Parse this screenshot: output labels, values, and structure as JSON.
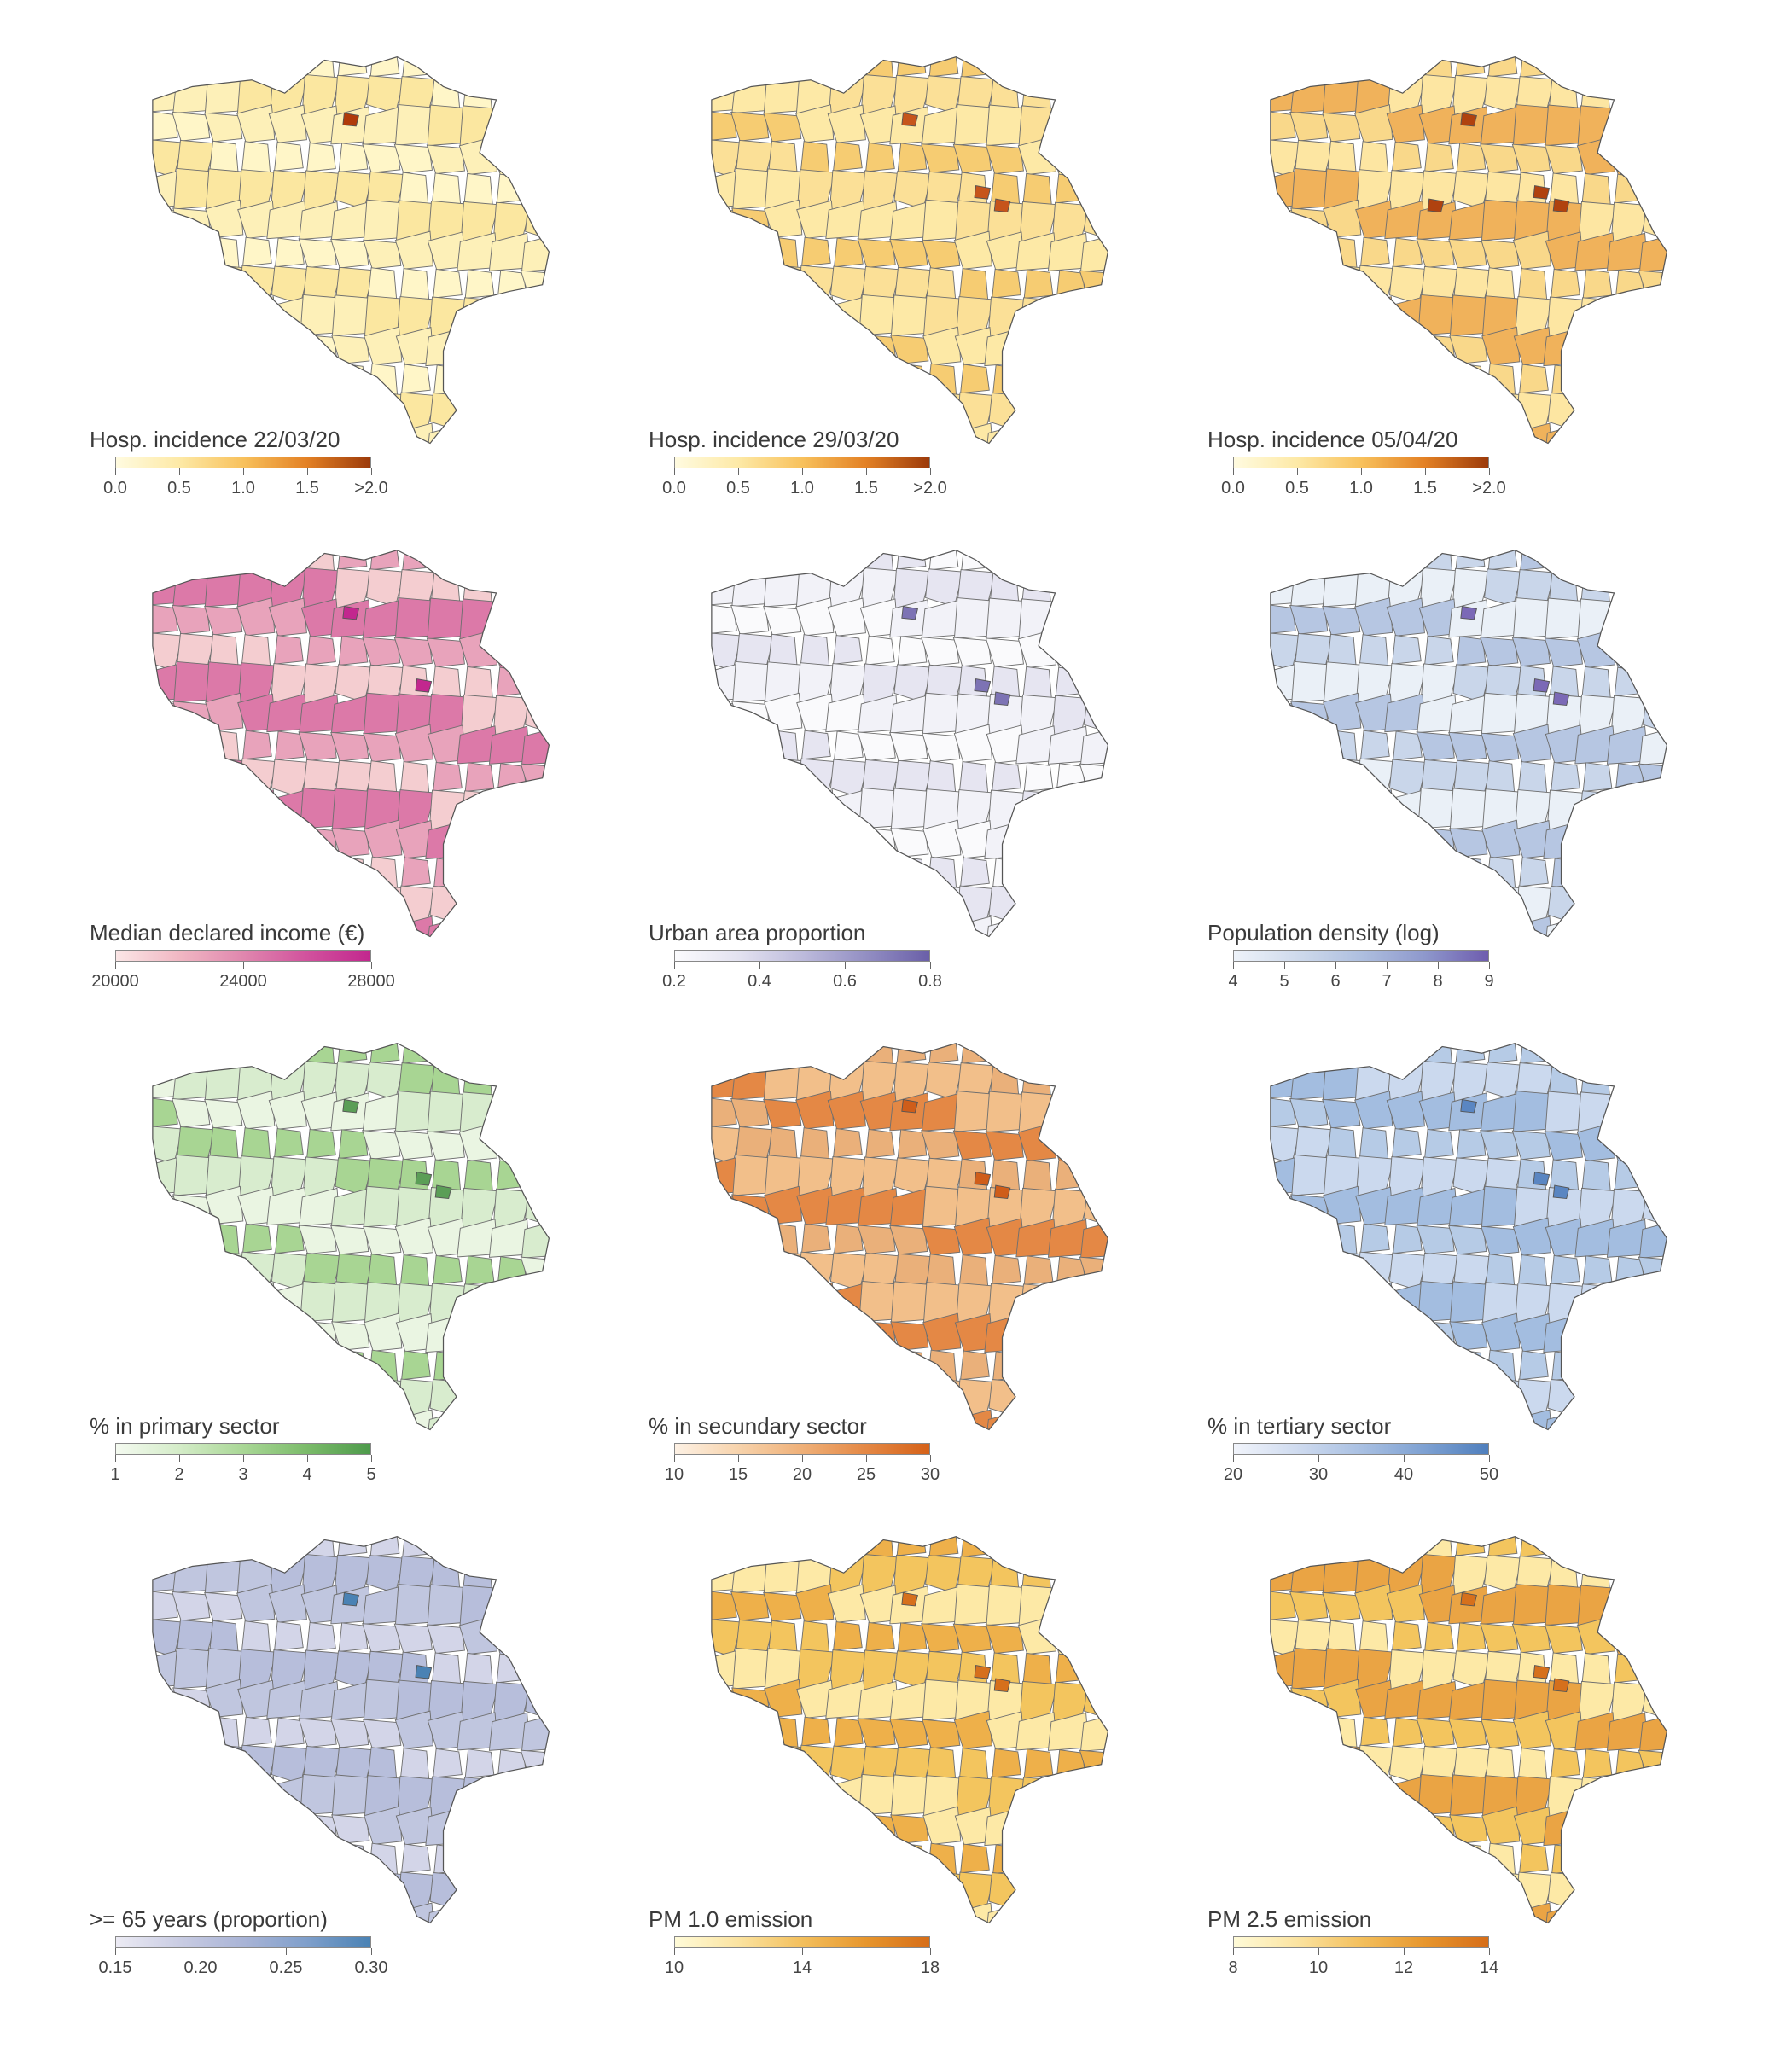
{
  "panels": [
    {
      "title": "Hosp. incidence 22/03/20",
      "ticks": [
        "0.0",
        "0.5",
        "1.0",
        "1.5",
        ">2.0"
      ],
      "colors": [
        "#fffbe0",
        "#fde9a6",
        "#f8c15c",
        "#e38125",
        "#9c3a0a"
      ],
      "fill": [
        "#fff6c8",
        "#fdf0b8",
        "#fbe7a0"
      ],
      "hot": "#b03a0a",
      "hotCount": 1
    },
    {
      "title": "Hosp. incidence 29/03/20",
      "ticks": [
        "0.0",
        "0.5",
        "1.0",
        "1.5",
        ">2.0"
      ],
      "colors": [
        "#fffbe0",
        "#fde9a6",
        "#f8c15c",
        "#e38125",
        "#9c3a0a"
      ],
      "fill": [
        "#fde9a6",
        "#fbe097",
        "#f6cc72"
      ],
      "hot": "#c6551b",
      "hotCount": 3
    },
    {
      "title": "Hosp. incidence 05/04/20",
      "ticks": [
        "0.0",
        "0.5",
        "1.0",
        "1.5",
        ">2.0"
      ],
      "colors": [
        "#fffbe0",
        "#fde9a6",
        "#f8c15c",
        "#e38125",
        "#9c3a0a"
      ],
      "fill": [
        "#fde6a2",
        "#f9d88a",
        "#f0b25b"
      ],
      "hot": "#b0420f",
      "hotCount": 4
    },
    {
      "title": "Median declared income (€)",
      "ticks": [
        "20000",
        "24000",
        "28000"
      ],
      "colors": [
        "#fbe6e6",
        "#f0b7c3",
        "#e087ae",
        "#d1529d",
        "#c2278e"
      ],
      "fill": [
        "#e8a3bb",
        "#dc79a8",
        "#f4cdd0"
      ],
      "hot": "#c2278e",
      "hotCount": 2
    },
    {
      "title": "Urban area proportion",
      "ticks": [
        "0.2",
        "0.4",
        "0.6",
        "0.8"
      ],
      "colors": [
        "#fbfbfd",
        "#e3e2f0",
        "#bdbbdc",
        "#938fc3",
        "#6a5fa8"
      ],
      "fill": [
        "#f2f2f8",
        "#e6e5f1",
        "#fafafc"
      ],
      "hot": "#7d73b4",
      "hotCount": 3
    },
    {
      "title": "Population density (log)",
      "ticks": [
        "4",
        "5",
        "6",
        "7",
        "8",
        "9"
      ],
      "colors": [
        "#eef3fa",
        "#cfdaec",
        "#aebfdf",
        "#8e98cc",
        "#6e5cae"
      ],
      "fill": [
        "#c9d6ea",
        "#b6c6e2",
        "#eaf0f7"
      ],
      "hot": "#7b69b6",
      "hotCount": 3
    },
    {
      "title": "% in primary sector",
      "ticks": [
        "1",
        "2",
        "3",
        "4",
        "5"
      ],
      "colors": [
        "#f4faf0",
        "#d4ecc8",
        "#a9d796",
        "#7bbb6a",
        "#4d9a4b"
      ],
      "fill": [
        "#eaf5e2",
        "#d8ecce",
        "#a8d593"
      ],
      "hot": "#5b9e57",
      "hotCount": 3
    },
    {
      "title": "% in secundary sector",
      "ticks": [
        "10",
        "15",
        "20",
        "25",
        "30"
      ],
      "colors": [
        "#fdf1e4",
        "#f7d3ac",
        "#efb078",
        "#e48845",
        "#d56118"
      ],
      "fill": [
        "#f2bf8a",
        "#eab07a",
        "#e48845"
      ],
      "hot": "#cf5d1a",
      "hotCount": 3
    },
    {
      "title": "% in tertiary sector",
      "ticks": [
        "20",
        "30",
        "40",
        "50"
      ],
      "colors": [
        "#f1f4fb",
        "#cfdbef",
        "#a9c0e2",
        "#7ea1d2",
        "#4f7fbd"
      ],
      "fill": [
        "#b6cbe6",
        "#a3bde0",
        "#cbd9ee"
      ],
      "hot": "#5a86c2",
      "hotCount": 3
    },
    {
      "title": ">= 65 years (proportion)",
      "ticks": [
        "0.15",
        "0.20",
        "0.25",
        "0.30"
      ],
      "colors": [
        "#ecebf4",
        "#c9cce3",
        "#a9b4d6",
        "#7f9fcb",
        "#4a82b4"
      ],
      "fill": [
        "#c0c6df",
        "#b7bedb",
        "#d3d5e8"
      ],
      "hot": "#4a82b4",
      "hotCount": 2
    },
    {
      "title": "PM 1.0 emission",
      "ticks": [
        "10",
        "14",
        "18"
      ],
      "colors": [
        "#fffbd8",
        "#fbe3a0",
        "#f3bf5c",
        "#e7962d",
        "#d66d18"
      ],
      "fill": [
        "#f3c55e",
        "#eeb04a",
        "#fde9a6"
      ],
      "hot": "#d6701c",
      "hotCount": 3
    },
    {
      "title": "PM 2.5 emission",
      "ticks": [
        "8",
        "10",
        "12",
        "14"
      ],
      "colors": [
        "#fffbd8",
        "#fbe3a0",
        "#f3bf5c",
        "#e7962d",
        "#d66d18"
      ],
      "fill": [
        "#f3c55e",
        "#eaa444",
        "#fde9a6"
      ],
      "hot": "#d6701c",
      "hotCount": 3
    }
  ]
}
